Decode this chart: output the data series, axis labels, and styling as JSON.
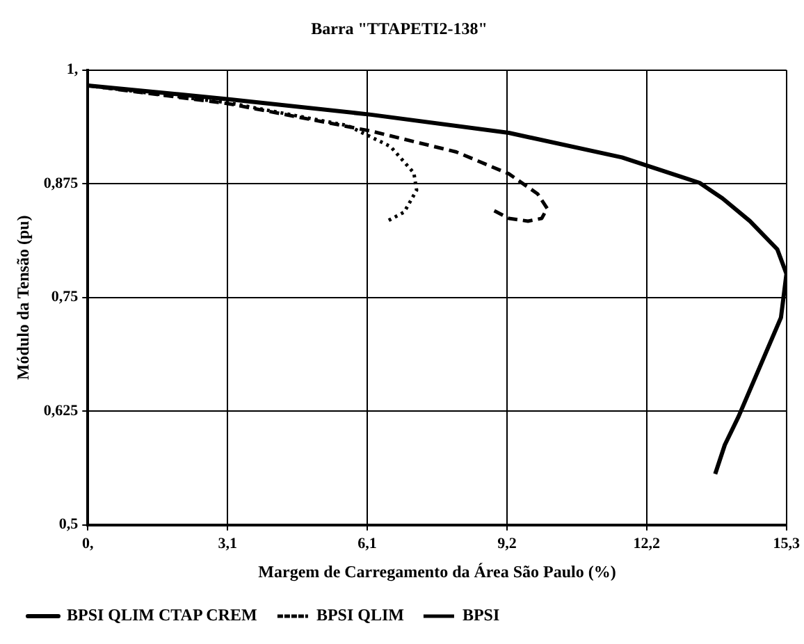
{
  "chart_data": {
    "type": "line",
    "title": "Barra \"TTAPETI2-138\"",
    "xlabel": "Margem de Carregamento da Área São Paulo (%)",
    "ylabel": "Módulo da Tensão (pu)",
    "xlim": [
      0,
      15.3
    ],
    "xticks": [
      {
        "value": 0,
        "label": "0,"
      },
      {
        "value": 3.06,
        "label": "3,1"
      },
      {
        "value": 6.12,
        "label": "6,1"
      },
      {
        "value": 9.18,
        "label": "9,2"
      },
      {
        "value": 12.24,
        "label": "12,2"
      },
      {
        "value": 15.3,
        "label": "15,3"
      }
    ],
    "ylim": [
      0.5,
      1
    ],
    "yticks": [
      {
        "value": 0.5,
        "label": "0,5"
      },
      {
        "value": 0.625,
        "label": "0,625"
      },
      {
        "value": 0.75,
        "label": "0,75"
      },
      {
        "value": 0.875,
        "label": "0,875"
      },
      {
        "value": 1,
        "label": "1,"
      }
    ],
    "grid": true,
    "legend": "bottom",
    "marker": "none",
    "series": [
      {
        "name": "BPSI QLIM CTAP CREM",
        "color": "#000000",
        "line_style": "solid",
        "x": [
          0,
          3.09,
          6.2,
          9.22,
          11.7,
          13.4,
          13.9,
          14.5,
          15.1,
          15.3,
          15.18,
          14.25,
          13.95,
          13.74
        ],
        "values": [
          0.983,
          0.968,
          0.951,
          0.931,
          0.904,
          0.876,
          0.859,
          0.834,
          0.803,
          0.776,
          0.728,
          0.619,
          0.588,
          0.556
        ]
      },
      {
        "name": "BPSI QLIM",
        "color": "#000000",
        "line_style": "dotted",
        "x": [
          0,
          3.09,
          5.69,
          6.63,
          7.14,
          7.2,
          6.93,
          6.52
        ],
        "values": [
          0.983,
          0.964,
          0.939,
          0.916,
          0.887,
          0.868,
          0.844,
          0.833
        ]
      },
      {
        "name": "BPSI",
        "color": "#000000",
        "line_style": "dashed",
        "x": [
          0,
          3.09,
          6.2,
          8.07,
          9.22,
          9.85,
          10.06,
          9.94,
          9.64,
          9.22,
          8.8
        ],
        "values": [
          0.983,
          0.963,
          0.933,
          0.91,
          0.886,
          0.864,
          0.848,
          0.837,
          0.834,
          0.837,
          0.848
        ]
      }
    ]
  }
}
